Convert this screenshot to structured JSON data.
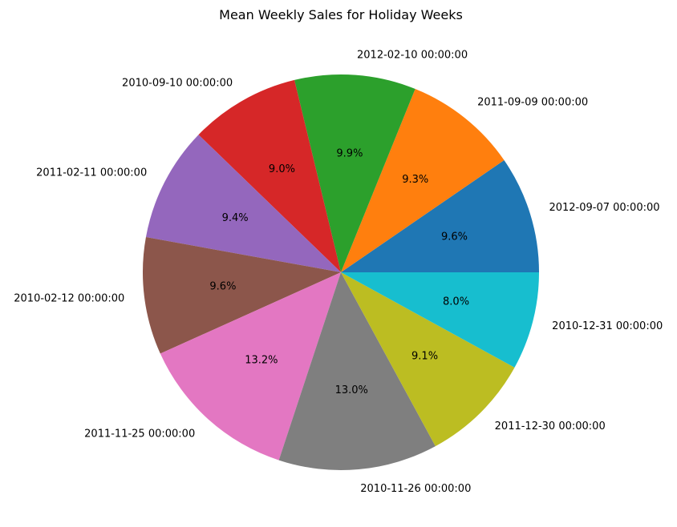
{
  "chart_data": {
    "type": "pie",
    "title": "Mean Weekly Sales for Holiday Weeks",
    "start_angle_deg": 0,
    "direction": "counterclockwise",
    "slices": [
      {
        "label": "2012-09-07 00:00:00",
        "value": 9.6,
        "pct_label": "9.6%",
        "color": "#1f77b4"
      },
      {
        "label": "2011-09-09 00:00:00",
        "value": 9.3,
        "pct_label": "9.3%",
        "color": "#ff7f0e"
      },
      {
        "label": "2012-02-10 00:00:00",
        "value": 9.9,
        "pct_label": "9.9%",
        "color": "#2ca02c"
      },
      {
        "label": "2010-09-10 00:00:00",
        "value": 9.0,
        "pct_label": "9.0%",
        "color": "#d62728"
      },
      {
        "label": "2011-02-11 00:00:00",
        "value": 9.4,
        "pct_label": "9.4%",
        "color": "#9467bd"
      },
      {
        "label": "2010-02-12 00:00:00",
        "value": 9.6,
        "pct_label": "9.6%",
        "color": "#8c564b"
      },
      {
        "label": "2011-11-25 00:00:00",
        "value": 13.2,
        "pct_label": "13.2%",
        "color": "#e377c2"
      },
      {
        "label": "2010-11-26 00:00:00",
        "value": 13.0,
        "pct_label": "13.0%",
        "color": "#7f7f7f"
      },
      {
        "label": "2011-12-30 00:00:00",
        "value": 9.1,
        "pct_label": "9.1%",
        "color": "#bcbd22"
      },
      {
        "label": "2010-12-31 00:00:00",
        "value": 8.0,
        "pct_label": "8.0%",
        "color": "#17becf"
      }
    ]
  }
}
